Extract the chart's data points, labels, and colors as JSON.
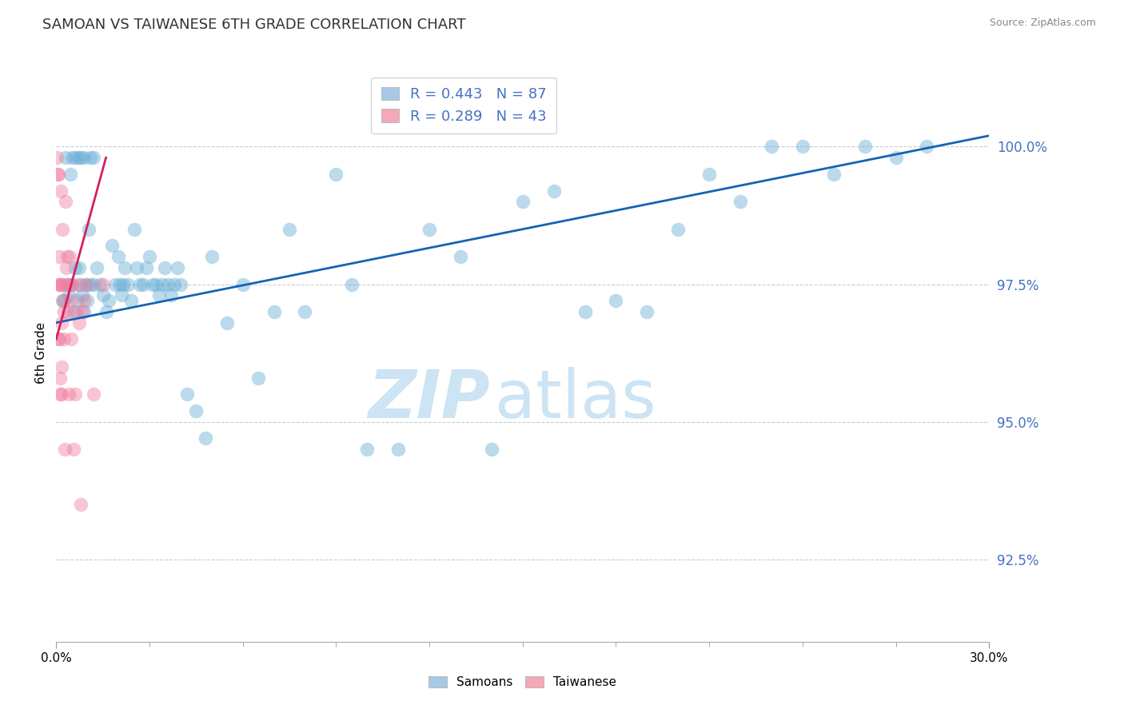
{
  "title": "SAMOAN VS TAIWANESE 6TH GRADE CORRELATION CHART",
  "source_text": "Source: ZipAtlas.com",
  "ylabel": "6th Grade",
  "ytick_values": [
    92.5,
    95.0,
    97.5,
    100.0
  ],
  "xlim": [
    0.0,
    30.0
  ],
  "ylim": [
    91.0,
    101.5
  ],
  "legend1_label": "R = 0.443   N = 87",
  "legend2_label": "R = 0.289   N = 43",
  "legend1_color": "#a8c8e8",
  "legend2_color": "#f4a8b8",
  "blue_color": "#6aaed6",
  "pink_color": "#f080a0",
  "trend_blue": "#1464b4",
  "trend_pink": "#d42060",
  "watermark_zip": "ZIP",
  "watermark_atlas": "atlas",
  "watermark_color": "#cce4f4",
  "background_color": "#ffffff",
  "ytick_color": "#4472c4",
  "samoan_x": [
    0.2,
    0.3,
    0.35,
    0.4,
    0.45,
    0.5,
    0.55,
    0.6,
    0.65,
    0.7,
    0.75,
    0.8,
    0.85,
    0.9,
    0.95,
    1.0,
    1.05,
    1.1,
    1.2,
    1.3,
    1.4,
    1.5,
    1.6,
    1.7,
    1.8,
    1.9,
    2.0,
    2.1,
    2.2,
    2.3,
    2.4,
    2.5,
    2.6,
    2.7,
    2.8,
    2.9,
    3.0,
    3.1,
    3.2,
    3.3,
    3.4,
    3.5,
    3.6,
    3.7,
    3.8,
    3.9,
    4.0,
    4.2,
    4.5,
    4.8,
    5.0,
    5.5,
    6.0,
    6.5,
    7.0,
    7.5,
    8.0,
    9.0,
    9.5,
    10.0,
    11.0,
    12.0,
    13.0,
    14.0,
    15.0,
    16.0,
    17.0,
    18.0,
    19.0,
    20.0,
    21.0,
    22.0,
    23.0,
    24.0,
    25.0,
    26.0,
    27.0,
    28.0,
    0.25,
    0.5,
    0.6,
    0.8,
    0.9,
    1.1,
    1.2,
    2.05,
    2.15
  ],
  "samoan_y": [
    97.2,
    99.8,
    97.5,
    97.3,
    99.5,
    97.5,
    97.0,
    97.8,
    97.2,
    99.8,
    97.8,
    97.5,
    97.3,
    97.0,
    97.5,
    97.2,
    98.5,
    97.5,
    97.5,
    97.8,
    97.5,
    97.3,
    97.0,
    97.2,
    98.2,
    97.5,
    98.0,
    97.3,
    97.8,
    97.5,
    97.2,
    98.5,
    97.8,
    97.5,
    97.5,
    97.8,
    98.0,
    97.5,
    97.5,
    97.3,
    97.5,
    97.8,
    97.5,
    97.3,
    97.5,
    97.8,
    97.5,
    95.5,
    95.2,
    94.7,
    98.0,
    96.8,
    97.5,
    95.8,
    97.0,
    98.5,
    97.0,
    99.5,
    97.5,
    94.5,
    94.5,
    98.5,
    98.0,
    94.5,
    99.0,
    99.2,
    97.0,
    97.2,
    97.0,
    98.5,
    99.5,
    99.0,
    100.0,
    100.0,
    99.5,
    100.0,
    99.8,
    100.0,
    97.2,
    99.8,
    99.8,
    99.8,
    99.8,
    99.8,
    99.8,
    97.5,
    97.5
  ],
  "taiwanese_x": [
    0.03,
    0.05,
    0.06,
    0.07,
    0.08,
    0.09,
    0.1,
    0.11,
    0.12,
    0.13,
    0.14,
    0.15,
    0.16,
    0.17,
    0.18,
    0.19,
    0.2,
    0.22,
    0.24,
    0.26,
    0.28,
    0.3,
    0.32,
    0.34,
    0.36,
    0.38,
    0.4,
    0.42,
    0.44,
    0.46,
    0.48,
    0.5,
    0.55,
    0.6,
    0.65,
    0.7,
    0.75,
    0.8,
    0.85,
    0.9,
    1.0,
    1.2,
    1.5
  ],
  "taiwanese_y": [
    99.8,
    99.5,
    97.5,
    96.5,
    99.5,
    98.0,
    96.5,
    95.5,
    97.5,
    95.8,
    99.2,
    97.5,
    96.0,
    96.8,
    95.5,
    97.5,
    98.5,
    97.2,
    97.0,
    96.5,
    94.5,
    99.0,
    97.8,
    97.5,
    98.0,
    97.0,
    95.5,
    97.5,
    98.0,
    97.2,
    96.5,
    97.5,
    94.5,
    95.5,
    97.0,
    97.5,
    96.8,
    93.5,
    97.0,
    97.2,
    97.5,
    95.5,
    97.5
  ],
  "trend_blue_x0": 0.0,
  "trend_blue_y0": 96.8,
  "trend_blue_x1": 30.0,
  "trend_blue_y1": 100.2,
  "trend_pink_x0": 0.0,
  "trend_pink_y0": 96.5,
  "trend_pink_x1": 1.6,
  "trend_pink_y1": 99.8
}
